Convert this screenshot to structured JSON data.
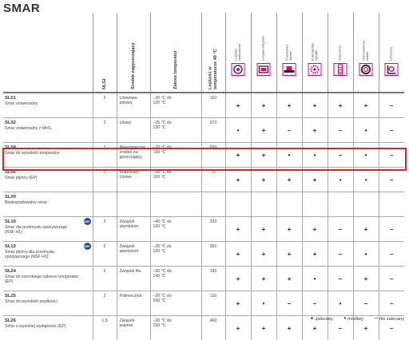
{
  "title": "SMAR",
  "header_columns": {
    "nlgi": "NLGI",
    "thickener": "Środek zagęszczający",
    "temperature": "Zakres temperatur",
    "viscosity": "Lepkość w\ntemperaturze 40 °C"
  },
  "applications": [
    {
      "label": "Łożyska\nwałeczkowe",
      "icon": "roller-bearing-icon"
    },
    {
      "label": "Łożyska ślizgowe",
      "icon": "plain-bearing-icon"
    },
    {
      "label": "Prowadnice\nliniowe",
      "icon": "linear-guide-icon"
    },
    {
      "label": "Koła zębate/\nzębatki",
      "icon": "gear-icon"
    },
    {
      "label": "Wrzeciona",
      "icon": "spindle-icon"
    },
    {
      "label": "Uszczelnienia\nwałów",
      "icon": "shaft-seal-icon"
    },
    {
      "label": "Łańcuchy",
      "icon": "chain-icon"
    }
  ],
  "rows": [
    {
      "code": "SL01",
      "desc": "Smar uniwersalny",
      "nsf": "",
      "nlgi": "2",
      "thickener": "Litowowa-\npniowy",
      "temp": "–30 °C do\n120 °C",
      "visc": "110",
      "symbols": [
        "+",
        "+",
        "+",
        "+",
        "+",
        "+",
        "–"
      ]
    },
    {
      "code": "SL02",
      "desc": "Smar uniwersalny z MoS₂",
      "nsf": "",
      "nlgi": "2",
      "thickener": "Litowy",
      "temp": "–25 °C do\n130 °C",
      "visc": "370",
      "symbols": [
        "•",
        "+",
        "–",
        "+",
        "–",
        "•",
        "–"
      ]
    },
    {
      "code": "SL04",
      "desc": "Smar do wysokich temperatur",
      "nsf": "",
      "nlgi": "2",
      "thickener": "Nieorganiczny\nśrodek za-\ngęszczający",
      "temp": "–20 °C do\n160 °C",
      "visc": "500",
      "symbols": [
        "+",
        "+",
        "•",
        "•",
        "–",
        "•",
        "–"
      ]
    },
    {
      "code": "SL06",
      "desc": "Smar płynny (EP)",
      "nsf": "",
      "nlgi": "0",
      "thickener": "Wapniowy-\nLitowo",
      "temp": "–30 °C do\n100 °C",
      "visc": "75",
      "symbols": [
        "+",
        "+",
        "+",
        "+",
        "•",
        "•",
        "–"
      ]
    },
    {
      "code": "SL09",
      "desc": "Biodegradowalny smar",
      "nsf": "",
      "nlgi": "",
      "thickener": "",
      "temp": "",
      "visc": "",
      "symbols": [
        "",
        "",
        "",
        "",
        "",
        "",
        ""
      ]
    },
    {
      "code": "SL10",
      "desc": "Smar dla przemysłu spożywczego\n(NSF H1)",
      "nsf": "NSF",
      "nlgi": "2",
      "thickener": "Związek\naluminium",
      "temp": "–40 °C do\n120 °C",
      "visc": "330",
      "symbols": [
        "+",
        "+",
        "+",
        "+",
        "–",
        "+",
        "–"
      ]
    },
    {
      "code": "SL12",
      "desc": "Smar płynny dla przemysłu\nspożywczego (NSF H1)",
      "nsf": "NSF",
      "nlgi": "0",
      "thickener": "Związek\naluminium",
      "temp": "–20 °C do\n120 °C",
      "visc": "350",
      "symbols": [
        "+",
        "+",
        "+",
        "+",
        "–",
        "•",
        "–"
      ]
    },
    {
      "code": "SL24",
      "desc": "Smar do szerokiego zakresu temperatur\n(EP)",
      "nsf": "",
      "nlgi": "2",
      "thickener": "Związek litu",
      "temp": "–30 °C do\n140 °C",
      "visc": "185",
      "symbols": [
        "+",
        "+",
        "+",
        "•",
        "–",
        "+",
        "–"
      ]
    },
    {
      "code": "SL25",
      "desc": "Smar do wysokich prędkości",
      "nsf": "",
      "nlgi": "2",
      "thickener": "Polimocznik",
      "temp": "–20 °C do\n160 °C",
      "visc": "110",
      "symbols": [
        "+",
        "•",
        "–",
        "–",
        "•",
        "–",
        "–"
      ]
    },
    {
      "code": "SL26",
      "desc": "Smar o wysokiej wydajności (EP)",
      "nsf": "",
      "nlgi": "1,5",
      "thickener": "Związek\nwapnia",
      "temp": "–20 °C do\n150 °C",
      "visc": "460",
      "symbols": [
        "+",
        "+",
        "+",
        "+",
        "–",
        "+",
        "–"
      ]
    }
  ],
  "legend": {
    "recommended": "zalecany",
    "possible": "możliwy",
    "not_recommended": "nie zalecany"
  },
  "colors": {
    "accent": "#e5007e",
    "highlight": "#e0202a"
  }
}
